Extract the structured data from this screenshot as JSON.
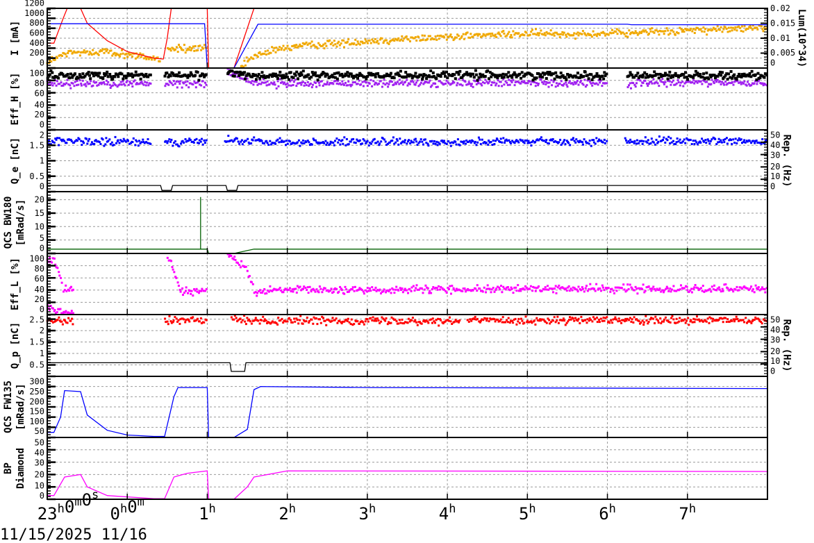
{
  "chart_data": {
    "type": "line",
    "x_axis": {
      "range": [
        "23:00",
        "08:00"
      ],
      "tick_labels": [
        "23h0m0s",
        "0h0m",
        "1h",
        "2h",
        "3h",
        "4h",
        "5h",
        "6h",
        "7h"
      ],
      "tick_times": [
        "23:00",
        "00:00",
        "01:00",
        "02:00",
        "03:00",
        "04:00",
        "05:00",
        "06:00",
        "07:00"
      ],
      "date_label": "11/15/2025 11/16"
    },
    "grid": true,
    "panels": [
      {
        "ylabel": [
          "I [mA]"
        ],
        "ylim": [
          0,
          1200
        ],
        "yticks": [
          0,
          200,
          400,
          600,
          800,
          1000,
          1200
        ],
        "right": {
          "label": "Lum(10^34)",
          "ylim": [
            0,
            0.02
          ],
          "yticks": [
            "0",
            "0.005",
            "0.01",
            "0.015",
            "0.02"
          ]
        },
        "series": [
          {
            "type": "scatter",
            "axis": "right",
            "color": "#f0a800",
            "segments": [
              [
                [
                  "23:00",
                  0.002
                ],
                [
                  "23:15",
                  0.005
                ],
                [
                  "23:40",
                  0.0055
                ],
                [
                  "00:00",
                  0.0045
                ],
                [
                  "00:25",
                  0.003
                ]
              ],
              [
                [
                  "00:30",
                  0.0065
                ],
                [
                  "01:00",
                  0.0065
                ]
              ],
              [
                [
                  "01:25",
                  0.0005
                ],
                [
                  "01:35",
                  0.004
                ],
                [
                  "02:00",
                  0.007
                ],
                [
                  "03:00",
                  0.009
                ],
                [
                  "04:00",
                  0.0105
                ],
                [
                  "05:00",
                  0.0115
                ],
                [
                  "06:00",
                  0.0115
                ],
                [
                  "07:00",
                  0.0125
                ],
                [
                  "08:00",
                  0.0135
                ]
              ]
            ]
          },
          {
            "type": "line",
            "color": "#ff0000",
            "points": [
              [
                "23:00",
                500
              ],
              [
                "23:05",
                500
              ],
              [
                "23:12",
                1000
              ],
              [
                "23:15",
                1200
              ],
              [
                "23:25",
                1200
              ],
              [
                "23:30",
                900
              ],
              [
                "23:45",
                550
              ],
              [
                "00:00",
                330
              ],
              [
                "00:20",
                200
              ],
              [
                "00:27",
                180
              ],
              [
                "00:30",
                600
              ],
              [
                "00:33",
                1200
              ],
              [
                "01:00",
                1200
              ],
              [
                "01:01",
                0
              ],
              [
                "01:20",
                0
              ],
              [
                "01:35",
                1200
              ],
              [
                "08:00",
                1200
              ]
            ]
          },
          {
            "type": "line",
            "color": "#0000ff",
            "points": [
              [
                "23:00",
                890
              ],
              [
                "00:58",
                890
              ],
              [
                "01:00",
                0
              ],
              [
                "01:20",
                0
              ],
              [
                "01:38",
                880
              ],
              [
                "06:15",
                880
              ],
              [
                "06:18",
                870
              ],
              [
                "08:00",
                870
              ]
            ]
          }
        ]
      },
      {
        "ylabel": [
          "Eff_H [%]"
        ],
        "ylim": [
          0,
          100
        ],
        "yticks": [
          0,
          20,
          40,
          60,
          80,
          100
        ],
        "series": [
          {
            "type": "scatter",
            "color": "#a020f0",
            "segments": [
              [
                [
                  "23:00",
                  75
                ],
                [
                  "00:18",
                  75
                ]
              ],
              [
                [
                  "00:28",
                  75
                ],
                [
                  "01:00",
                  75
                ]
              ],
              [
                [
                  "01:15",
                  95
                ],
                [
                  "01:30",
                  80
                ],
                [
                  "01:45",
                  75
                ],
                [
                  "06:00",
                  76
                ]
              ],
              [
                [
                  "06:15",
                  70
                ],
                [
                  "06:20",
                  76
                ],
                [
                  "08:00",
                  76
                ]
              ]
            ]
          },
          {
            "type": "scatter",
            "color": "#000000",
            "segments": [
              [
                [
                  "23:00",
                  88
                ],
                [
                  "00:18",
                  88
                ]
              ],
              [
                [
                  "00:28",
                  88
                ],
                [
                  "01:00",
                  88
                ]
              ],
              [
                [
                  "01:15",
                  92
                ],
                [
                  "01:40",
                  88
                ],
                [
                  "06:00",
                  88
                ]
              ],
              [
                [
                  "06:15",
                  88
                ],
                [
                  "08:00",
                  88
                ]
              ]
            ]
          }
        ]
      },
      {
        "ylabel": [
          "Q_e [nC]"
        ],
        "ylim": [
          0,
          2
        ],
        "yticks": [
          "0",
          "0.5",
          "1",
          "1.5",
          "2"
        ],
        "right": {
          "label": "Rep. (Hz)",
          "ylim": [
            0,
            50
          ],
          "yticks": [
            "0",
            "10",
            "20",
            "30",
            "40",
            "50"
          ]
        },
        "series": [
          {
            "type": "scatter",
            "color": "#0000ff",
            "segments": [
              [
                [
                  "23:00",
                  1.62
                ],
                [
                  "00:18",
                  1.6
                ]
              ],
              [
                [
                  "00:28",
                  1.62
                ],
                [
                  "01:00",
                  1.6
                ]
              ],
              [
                [
                  "01:13",
                  1.65
                ],
                [
                  "01:45",
                  1.6
                ],
                [
                  "06:00",
                  1.62
                ]
              ],
              [
                [
                  "06:13",
                  1.65
                ],
                [
                  "08:00",
                  1.62
                ]
              ]
            ]
          },
          {
            "type": "line",
            "axis": "right",
            "color": "#000000",
            "points": [
              [
                "23:00",
                5
              ],
              [
                "00:25",
                5
              ],
              [
                "00:26",
                1
              ],
              [
                "00:33",
                1
              ],
              [
                "00:34",
                5
              ],
              [
                "01:14",
                5
              ],
              [
                "01:15",
                1
              ],
              [
                "01:22",
                1
              ],
              [
                "01:23",
                5
              ],
              [
                "08:00",
                5
              ]
            ]
          }
        ]
      },
      {
        "ylabel": [
          "QCS BW180",
          "[mRad/s]"
        ],
        "ylim": [
          0,
          23
        ],
        "yticks": [
          0,
          5,
          10,
          15,
          20
        ],
        "series": [
          {
            "type": "line",
            "color": "#006000",
            "points": [
              [
                "23:00",
                1.6
              ],
              [
                "00:55",
                1.6
              ],
              [
                "00:55",
                21
              ],
              [
                "00:55",
                1.6
              ],
              [
                "01:00",
                1.6
              ],
              [
                "01:01",
                0
              ],
              [
                "01:20",
                0
              ],
              [
                "01:35",
                1.6
              ],
              [
                "08:00",
                1.6
              ]
            ]
          },
          {
            "type": "line",
            "color": "#000000",
            "points": [
              [
                "00:20",
                0
              ],
              [
                "08:00",
                0
              ]
            ]
          }
        ]
      },
      {
        "ylabel": [
          "Eff_L [%]"
        ],
        "ylim": [
          0,
          100
        ],
        "yticks": [
          0,
          20,
          40,
          60,
          80,
          100
        ],
        "series": [
          {
            "type": "scatter",
            "color": "#ff00ff",
            "segments": [
              [
                [
                  "23:00",
                  90
                ],
                [
                  "23:05",
                  92
                ],
                [
                  "23:10",
                  60
                ],
                [
                  "23:12",
                  40
                ],
                [
                  "23:20",
                  40
                ]
              ],
              [
                [
                  "00:30",
                  100
                ],
                [
                  "00:35",
                  70
                ],
                [
                  "00:40",
                  38
                ],
                [
                  "01:00",
                  40
                ]
              ],
              [
                [
                  "01:15",
                  100
                ],
                [
                  "01:22",
                  85
                ],
                [
                  "01:28",
                  80
                ],
                [
                  "01:35",
                  38
                ],
                [
                  "02:00",
                  40
                ],
                [
                  "05:00",
                  42
                ],
                [
                  "08:00",
                  43
                ]
              ],
              [
                [
                  "23:00",
                  12
                ],
                [
                  "23:08",
                  3
                ],
                [
                  "23:20",
                  2
                ]
              ]
            ]
          }
        ]
      },
      {
        "ylabel": [
          "Q_p [nC]"
        ],
        "ylim": [
          0,
          2.7
        ],
        "yticks": [
          "0.5",
          "1",
          "1.5",
          "2",
          "2.5"
        ],
        "right": {
          "label": "Rep. (Hz)",
          "ylim": [
            0,
            50
          ],
          "yticks": [
            "0",
            "10",
            "20",
            "30",
            "40",
            "50"
          ]
        },
        "series": [
          {
            "type": "scatter",
            "color": "#ff0000",
            "segments": [
              [
                [
                  "23:00",
                  2.45
                ],
                [
                  "23:20",
                  2.4
                ]
              ],
              [
                [
                  "00:28",
                  2.42
                ],
                [
                  "01:00",
                  2.45
                ]
              ],
              [
                [
                  "01:18",
                  2.45
                ],
                [
                  "04:10",
                  2.42
                ]
              ],
              [
                [
                  "04:15",
                  2.45
                ],
                [
                  "08:00",
                  2.43
                ]
              ]
            ]
          },
          {
            "type": "line",
            "axis": "right",
            "color": "#000000",
            "points": [
              [
                "23:00",
                11
              ],
              [
                "01:17",
                11
              ],
              [
                "01:18",
                4
              ],
              [
                "01:28",
                4
              ],
              [
                "01:29",
                11
              ],
              [
                "08:00",
                11
              ]
            ]
          }
        ]
      },
      {
        "ylabel": [
          "QCS FW135",
          "[mRad/s]"
        ],
        "ylim": [
          0,
          300
        ],
        "yticks": [
          50,
          100,
          150,
          200,
          250,
          300
        ],
        "series": [
          {
            "type": "line",
            "color": "#0000ff",
            "points": [
              [
                "23:00",
                25
              ],
              [
                "23:05",
                25
              ],
              [
                "23:10",
                100
              ],
              [
                "23:13",
                230
              ],
              [
                "23:25",
                225
              ],
              [
                "23:30",
                110
              ],
              [
                "23:45",
                35
              ],
              [
                "00:00",
                12
              ],
              [
                "00:20",
                5
              ],
              [
                "00:28",
                5
              ],
              [
                "00:35",
                200
              ],
              [
                "00:38",
                245
              ],
              [
                "01:00",
                245
              ],
              [
                "01:01",
                0
              ],
              [
                "01:20",
                0
              ],
              [
                "01:30",
                40
              ],
              [
                "01:35",
                235
              ],
              [
                "01:40",
                250
              ],
              [
                "03:00",
                245
              ],
              [
                "08:00",
                240
              ]
            ]
          }
        ]
      },
      {
        "ylabel": [
          "BP",
          "Diamond"
        ],
        "ylim": [
          0,
          50
        ],
        "yticks": [
          0,
          10,
          20,
          30,
          40,
          50
        ],
        "series": [
          {
            "type": "line",
            "color": "#ff00ff",
            "points": [
              [
                "23:00",
                3
              ],
              [
                "23:05",
                3
              ],
              [
                "23:13",
                18
              ],
              [
                "23:25",
                20
              ],
              [
                "23:30",
                10
              ],
              [
                "23:45",
                3
              ],
              [
                "00:20",
                0.5
              ],
              [
                "00:28",
                0.5
              ],
              [
                "00:35",
                18
              ],
              [
                "00:45",
                21
              ],
              [
                "01:00",
                23
              ],
              [
                "01:01",
                0
              ],
              [
                "01:20",
                0
              ],
              [
                "01:30",
                10
              ],
              [
                "01:35",
                18
              ],
              [
                "02:00",
                23
              ],
              [
                "08:00",
                22.5
              ]
            ]
          }
        ]
      }
    ]
  }
}
